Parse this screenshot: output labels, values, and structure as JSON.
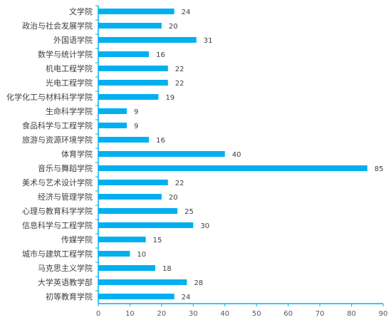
{
  "chart_data": {
    "type": "bar",
    "orientation": "horizontal",
    "categories": [
      "文学院",
      "政治与社会发展学院",
      "外国语学院",
      "数学与统计学院",
      "机电工程学院",
      "光电工程学院",
      "化学化工与材料科学学院",
      "生命科学学院",
      "食品科学与工程学院",
      "旅游与资源环境学院",
      "体育学院",
      "音乐与舞蹈学院",
      "美术与艺术设计学院",
      "经济与管理学院",
      "心理与教育科学学院",
      "信息科学与工程学院",
      "传媒学院",
      "城市与建筑工程学院",
      "马克思主义学院",
      "大学英语教学部",
      "初等教育学院"
    ],
    "values": [
      24,
      20,
      31,
      16,
      22,
      22,
      19,
      9,
      9,
      16,
      40,
      85,
      22,
      20,
      25,
      30,
      15,
      10,
      18,
      28,
      24
    ],
    "value_labels": [
      "24",
      "20",
      "31",
      "16",
      "22",
      "22",
      "19",
      "9",
      "9",
      "16",
      "40",
      "85",
      "22",
      "20",
      "25",
      "30",
      "15",
      "10",
      "18",
      "28",
      "24"
    ],
    "xlim": [
      0,
      90
    ],
    "xticks": [
      0,
      10,
      20,
      30,
      40,
      50,
      60,
      70,
      80,
      90
    ],
    "xtick_labels": [
      "0",
      "10",
      "20",
      "30",
      "40",
      "50",
      "60",
      "70",
      "80",
      "90"
    ],
    "title": "",
    "xlabel": "",
    "ylabel": "",
    "grid": false,
    "legend": "none",
    "bar_color": "#00B0F0",
    "axis_color": "#00B0F0"
  }
}
